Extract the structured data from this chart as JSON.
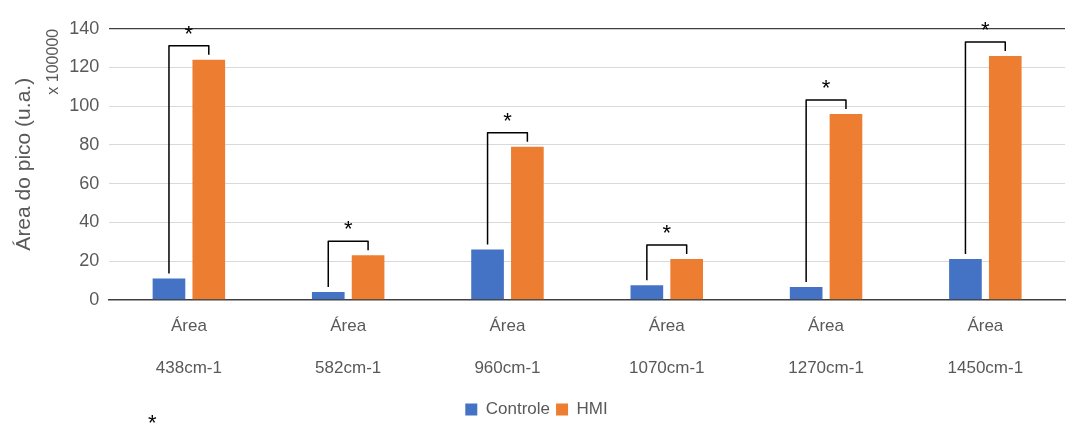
{
  "chart_data": {
    "type": "bar",
    "ylabel": "Área do pico (u.a.)",
    "categories": [
      "Área\n438cm-1",
      "Área\n582cm-1",
      "Área\n960cm-1",
      "Área\n1070cm-1",
      "Área\n1270cm-1",
      "Área\n1450cm-1"
    ],
    "series": [
      {
        "name": "Controle",
        "color": "#4472c4",
        "values": [
          11,
          4,
          26,
          7.5,
          6.5,
          21
        ]
      },
      {
        "name": "HMI",
        "color": "#ed7d31",
        "values": [
          124,
          23,
          79,
          21,
          96,
          126
        ]
      }
    ],
    "ylim": [
      0,
      140
    ],
    "yticks": [
      0,
      20,
      40,
      60,
      80,
      100,
      120,
      140
    ],
    "grid": "y",
    "legend": "bottom",
    "annotations": [
      "x 100000",
      "*",
      "*",
      "*",
      "*",
      "*",
      "*",
      "*"
    ]
  }
}
